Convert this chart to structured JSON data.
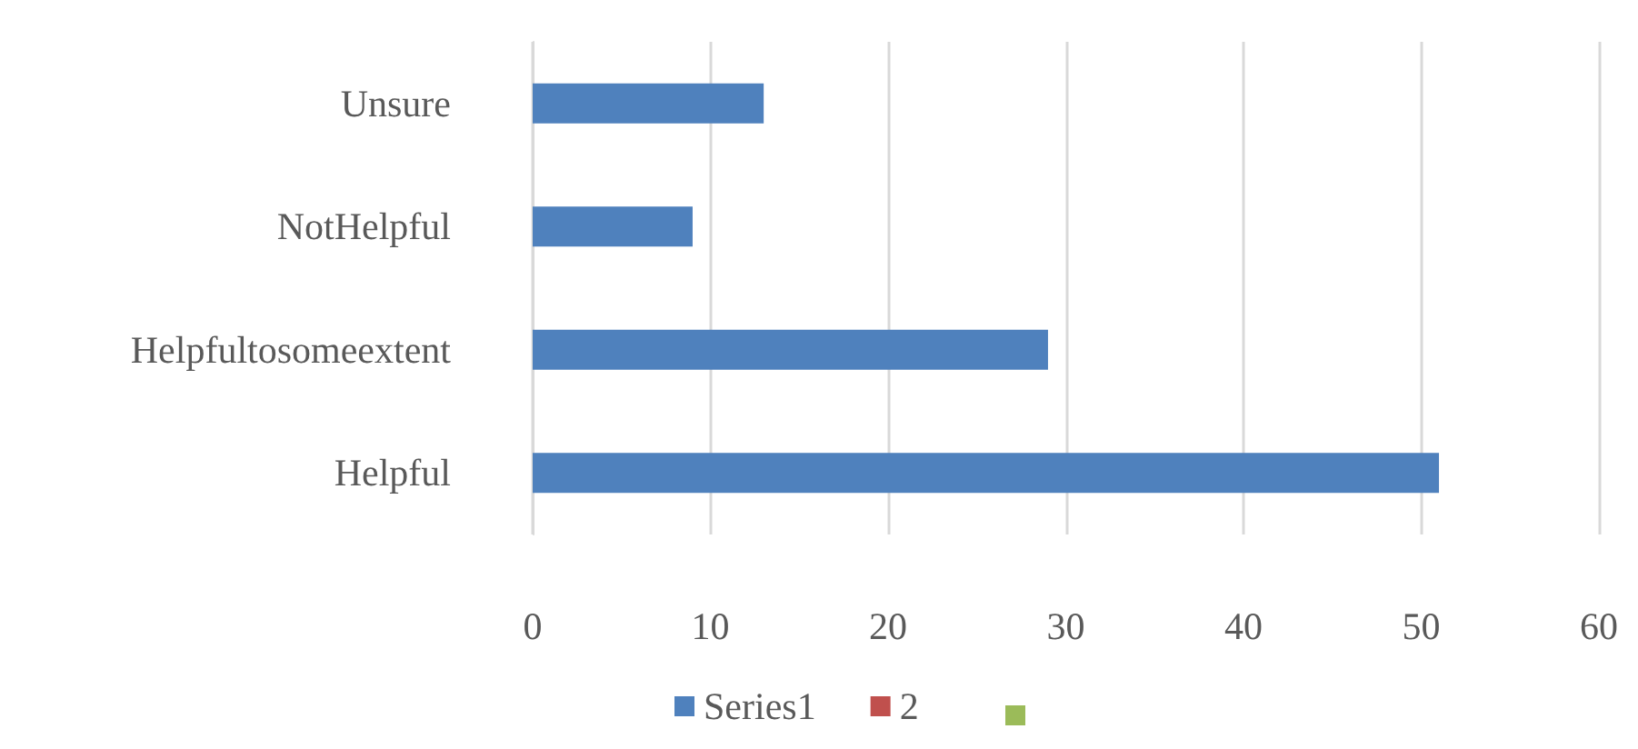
{
  "chart_data": {
    "type": "bar",
    "orientation": "horizontal",
    "categories": [
      "Unsure",
      "NotHelpful",
      "Helpfultosomeextent",
      "Helpful"
    ],
    "series": [
      {
        "name": "Series1",
        "color": "#4f81bd",
        "values": [
          13,
          9,
          29,
          51
        ]
      },
      {
        "name": "2",
        "color": "#c0504d",
        "values": [
          null,
          null,
          null,
          null
        ]
      },
      {
        "color": "#9bbb59",
        "values": [
          null,
          null,
          null,
          null
        ]
      }
    ],
    "xlim": [
      0,
      60
    ],
    "xticks": [
      0,
      10,
      20,
      30,
      40,
      50,
      60
    ],
    "grid": "x",
    "legend": "bottom"
  }
}
